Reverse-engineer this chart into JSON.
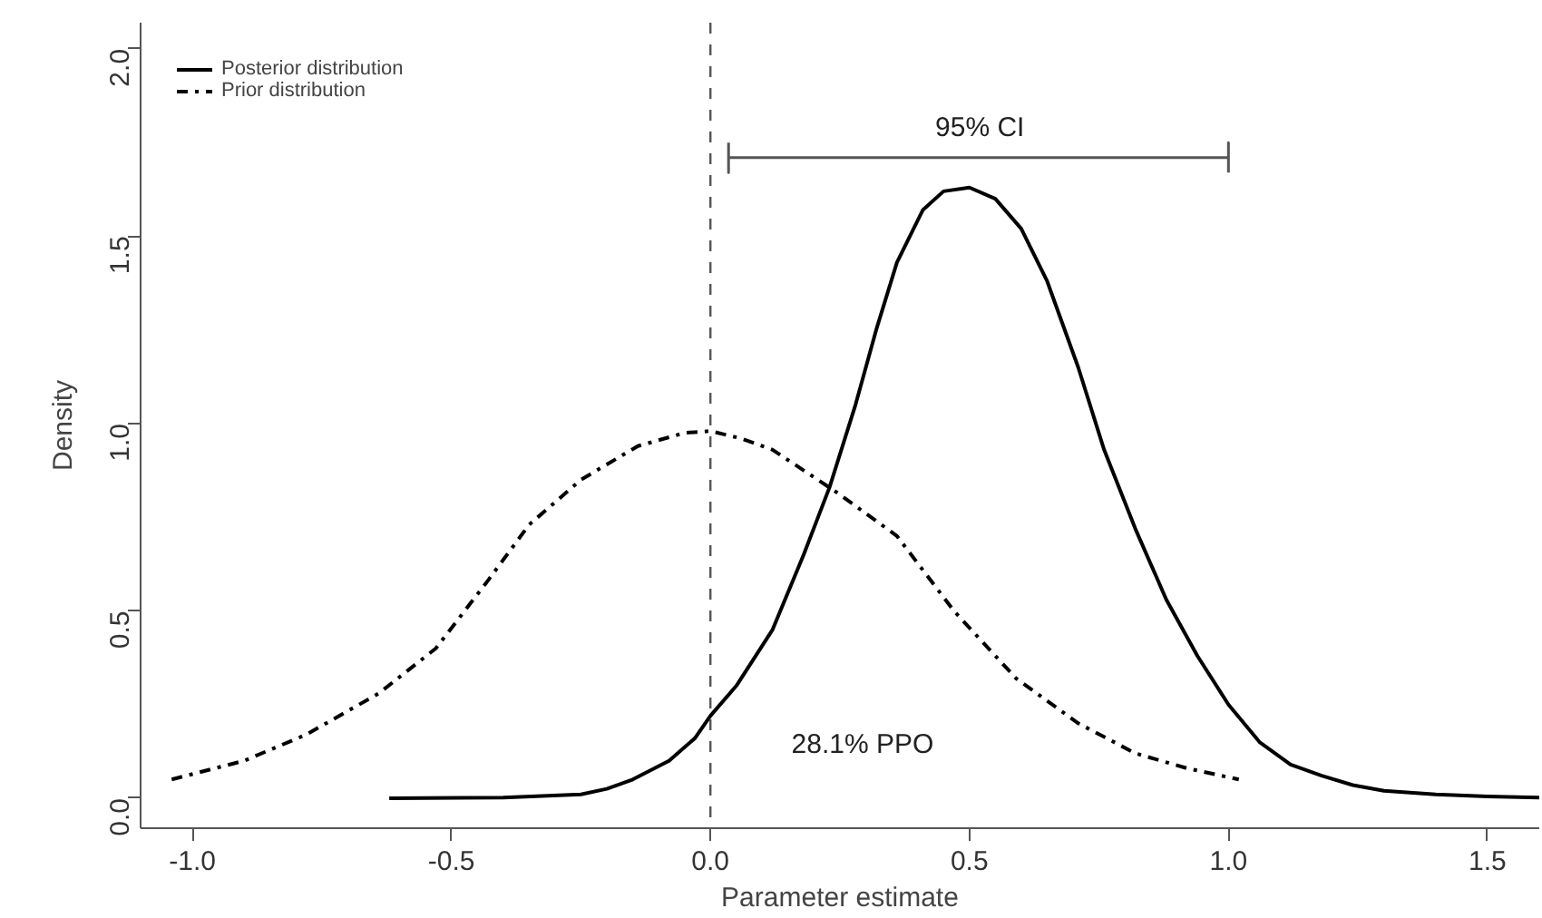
{
  "chart_data": {
    "type": "line",
    "xlabel": "Parameter estimate",
    "ylabel": "Density",
    "xlim": [
      -1.1,
      1.6
    ],
    "ylim": [
      -0.08,
      2.07
    ],
    "xticks": [
      {
        "value": -1.0,
        "label": "-1.0"
      },
      {
        "value": -0.5,
        "label": "-0.5"
      },
      {
        "value": 0.0,
        "label": "0.0"
      },
      0.5,
      {
        "value": 1.0,
        "label": "1.0"
      },
      1.5
    ],
    "yticks": [
      {
        "value": 0,
        "label": "0.0"
      },
      0.5,
      {
        "value": 1,
        "label": "1.0"
      },
      1.5,
      {
        "value": 2,
        "label": "2.0"
      }
    ],
    "grid": false,
    "legend": "top left",
    "marker": "none",
    "series": [
      {
        "name": "Posterior distribution",
        "color": "#000000",
        "line_style": "solid",
        "x": [
          -0.62,
          -0.4,
          -0.25,
          -0.2,
          -0.15,
          -0.08,
          -0.03,
          0.0,
          0.05,
          0.12,
          0.18,
          0.23,
          0.28,
          0.32,
          0.36,
          0.41,
          0.45,
          0.5,
          0.55,
          0.6,
          0.65,
          0.71,
          0.76,
          0.82,
          0.88,
          0.94,
          1.0,
          1.06,
          1.12,
          1.18,
          1.24,
          1.3,
          1.4,
          1.5,
          1.6
        ],
        "values": [
          0,
          0.002,
          0.01,
          0.025,
          0.05,
          0.1,
          0.16,
          0.22,
          0.3,
          0.45,
          0.65,
          0.83,
          1.05,
          1.25,
          1.43,
          1.57,
          1.62,
          1.63,
          1.6,
          1.52,
          1.38,
          1.15,
          0.93,
          0.72,
          0.53,
          0.38,
          0.25,
          0.15,
          0.09,
          0.06,
          0.035,
          0.02,
          0.01,
          0.005,
          0.002
        ]
      },
      {
        "name": "Prior distribution",
        "color": "#000000",
        "line_style": "dashdot",
        "x": [
          -1.04,
          -0.9,
          -0.78,
          -0.64,
          -0.53,
          -0.43,
          -0.35,
          -0.25,
          -0.14,
          -0.05,
          0.0,
          0.06,
          0.12,
          0.24,
          0.36,
          0.47,
          0.59,
          0.71,
          0.82,
          0.92,
          1.02
        ],
        "values": [
          0.05,
          0.1,
          0.17,
          0.28,
          0.4,
          0.58,
          0.73,
          0.85,
          0.94,
          0.975,
          0.98,
          0.96,
          0.93,
          0.82,
          0.7,
          0.5,
          0.32,
          0.2,
          0.12,
          0.08,
          0.05
        ]
      },
      {
        "color": "#555555",
        "line_style": "solid",
        "x": [
          0.035,
          0.035,
          0.035,
          1.0,
          1.0,
          1.0
        ],
        "values": [
          1.75,
          1.67,
          1.71,
          1.71,
          1.75,
          1.67
        ]
      }
    ],
    "ref_lines": [
      {
        "axis": "x",
        "value": 0,
        "color": "#555555",
        "line_style": "dashed"
      }
    ],
    "annotations": [
      {
        "text": "95% CI",
        "x": 0.52,
        "y": 1.71
      },
      "28.1% PPO"
    ]
  }
}
